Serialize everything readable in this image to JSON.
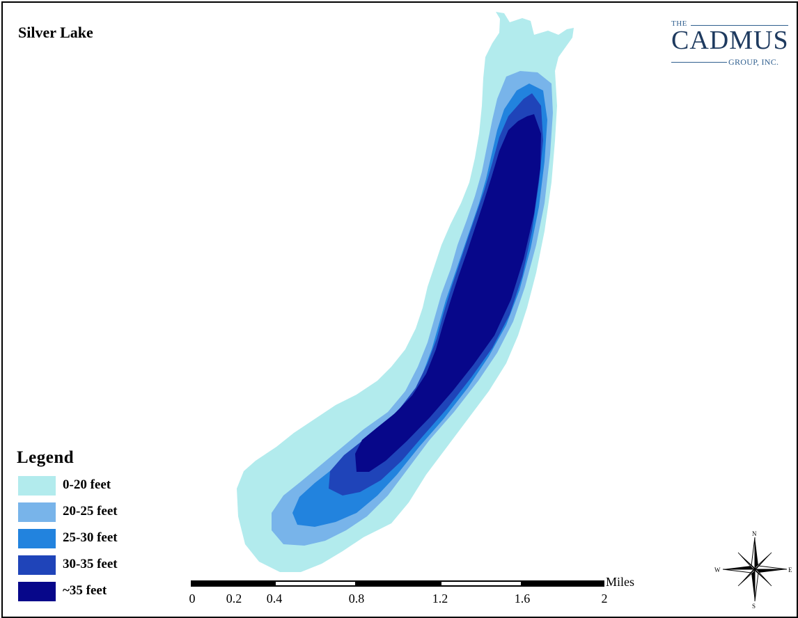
{
  "map": {
    "title": "Silver Lake"
  },
  "logo": {
    "the": "THE",
    "main": "CADMUS",
    "sub": "GROUP, INC."
  },
  "legend": {
    "title": "Legend",
    "items": [
      {
        "label": "0-20 feet",
        "color": "#b2ebed"
      },
      {
        "label": "20-25 feet",
        "color": "#78b4ea"
      },
      {
        "label": "25-30 feet",
        "color": "#2283de"
      },
      {
        "label": "30-35 feet",
        "color": "#1f44b9"
      },
      {
        "label": "~35 feet",
        "color": "#07078a"
      }
    ]
  },
  "scalebar": {
    "unit": "Miles",
    "ticks": [
      "0",
      "0.2",
      "0.4",
      "0.8",
      "1.2",
      "1.6",
      "2"
    ]
  },
  "compass": {
    "north": "N",
    "south": "S",
    "east": "E",
    "west": "W"
  }
}
